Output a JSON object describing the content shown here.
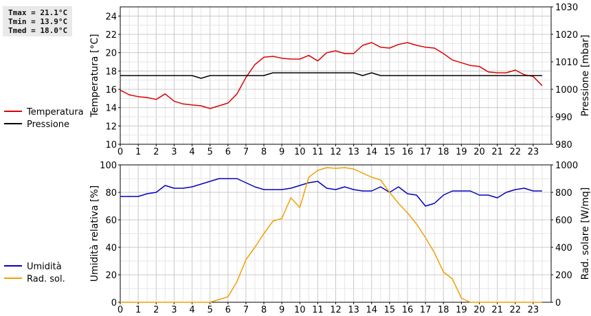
{
  "stats": {
    "tmax": "Tmax = 21.1°C",
    "tmin": "Tmin = 13.9°C",
    "tmed": "Tmed = 18.0°C"
  },
  "chart_data": [
    {
      "type": "line",
      "xlabel": "",
      "ylabel": "Temperatura [°C]",
      "y2label": "Pressione [mbar]",
      "xlim": [
        0,
        24
      ],
      "ylim": [
        10,
        25
      ],
      "y2lim": [
        980,
        1030
      ],
      "x_ticks": [
        0,
        1,
        2,
        3,
        4,
        5,
        6,
        7,
        8,
        9,
        10,
        11,
        12,
        13,
        14,
        15,
        16,
        17,
        18,
        19,
        20,
        21,
        22,
        23
      ],
      "y_ticks": [
        10,
        12,
        14,
        16,
        18,
        20,
        22,
        24
      ],
      "y2_ticks": [
        980,
        990,
        1000,
        1010,
        1020,
        1030
      ],
      "grid": true,
      "legend": "left",
      "series": [
        {
          "name": "Temperatura",
          "axis": "left",
          "color": "#dd0000",
          "x": [
            0,
            0.5,
            1,
            1.5,
            2,
            2.5,
            3,
            3.5,
            4,
            4.5,
            5,
            5.5,
            6,
            6.5,
            7,
            7.5,
            8,
            8.5,
            9,
            9.5,
            10,
            10.5,
            11,
            11.5,
            12,
            12.5,
            13,
            13.5,
            14,
            14.5,
            15,
            15.5,
            16,
            16.5,
            17,
            17.5,
            18,
            18.5,
            19,
            19.5,
            20,
            20.5,
            21,
            21.5,
            22,
            22.5,
            23,
            23.5
          ],
          "values": [
            15.9,
            15.4,
            15.2,
            15.1,
            14.9,
            15.5,
            14.7,
            14.4,
            14.3,
            14.2,
            13.9,
            14.2,
            14.5,
            15.5,
            17.3,
            18.7,
            19.5,
            19.6,
            19.4,
            19.3,
            19.3,
            19.7,
            19.1,
            20.0,
            20.2,
            19.9,
            19.9,
            20.8,
            21.1,
            20.6,
            20.5,
            20.9,
            21.1,
            20.8,
            20.6,
            20.5,
            19.9,
            19.2,
            18.9,
            18.6,
            18.5,
            17.9,
            17.8,
            17.8,
            18.1,
            17.6,
            17.4,
            16.4
          ]
        },
        {
          "name": "Pressione",
          "axis": "right",
          "color": "#000000",
          "x": [
            0,
            0.5,
            1,
            1.5,
            2,
            2.5,
            3,
            3.5,
            4,
            4.5,
            5,
            5.5,
            6,
            6.5,
            7,
            7.5,
            8,
            8.5,
            9,
            9.5,
            10,
            10.5,
            11,
            11.5,
            12,
            12.5,
            13,
            13.5,
            14,
            14.5,
            15,
            15.5,
            16,
            16.5,
            17,
            17.5,
            18,
            18.5,
            19,
            19.5,
            20,
            20.5,
            21,
            21.5,
            22,
            22.5,
            23,
            23.5
          ],
          "values": [
            1005,
            1005,
            1005,
            1005,
            1005,
            1005,
            1005,
            1005,
            1005,
            1004,
            1005,
            1005,
            1005,
            1005,
            1005,
            1005,
            1005,
            1006,
            1006,
            1006,
            1006,
            1006,
            1006,
            1006,
            1006,
            1006,
            1006,
            1005,
            1006,
            1005,
            1005,
            1005,
            1005,
            1005,
            1005,
            1005,
            1005,
            1005,
            1005,
            1005,
            1005,
            1005,
            1005,
            1005,
            1005,
            1005,
            1005,
            1005
          ]
        }
      ]
    },
    {
      "type": "line",
      "xlabel": "",
      "ylabel": "Umidità relativa [%]",
      "y2label": "Rad. solare [W/mq]",
      "xlim": [
        0,
        24
      ],
      "ylim": [
        0,
        100
      ],
      "y2lim": [
        0,
        1000
      ],
      "x_ticks": [
        0,
        1,
        2,
        3,
        4,
        5,
        6,
        7,
        8,
        9,
        10,
        11,
        12,
        13,
        14,
        15,
        16,
        17,
        18,
        19,
        20,
        21,
        22,
        23
      ],
      "y_ticks": [
        0,
        20,
        40,
        60,
        80,
        100
      ],
      "y2_ticks": [
        0,
        200,
        400,
        600,
        800,
        1000
      ],
      "grid": true,
      "legend": "left",
      "series": [
        {
          "name": "Umidità",
          "axis": "left",
          "color": "#0000bb",
          "x": [
            0,
            0.5,
            1,
            1.5,
            2,
            2.5,
            3,
            3.5,
            4,
            4.5,
            5,
            5.5,
            6,
            6.5,
            7,
            7.5,
            8,
            8.5,
            9,
            9.5,
            10,
            10.5,
            11,
            11.5,
            12,
            12.5,
            13,
            13.5,
            14,
            14.5,
            15,
            15.5,
            16,
            16.5,
            17,
            17.5,
            18,
            18.5,
            19,
            19.5,
            20,
            20.5,
            21,
            21.5,
            22,
            22.5,
            23,
            23.5
          ],
          "values": [
            77,
            77,
            77,
            79,
            80,
            85,
            83,
            83,
            84,
            86,
            88,
            90,
            90,
            90,
            87,
            84,
            82,
            82,
            82,
            83,
            85,
            87,
            88,
            83,
            82,
            84,
            82,
            81,
            81,
            84,
            80,
            84,
            79,
            78,
            70,
            72,
            78,
            81,
            81,
            81,
            78,
            78,
            76,
            80,
            82,
            83,
            81,
            81
          ]
        },
        {
          "name": "Rad. sol.",
          "axis": "right",
          "color": "#f0a000",
          "x": [
            0,
            0.5,
            1,
            1.5,
            2,
            2.5,
            3,
            3.5,
            4,
            4.5,
            5,
            5.5,
            6,
            6.5,
            7,
            7.5,
            8,
            8.5,
            9,
            9.5,
            10,
            10.5,
            11,
            11.5,
            12,
            12.5,
            13,
            13.5,
            14,
            14.5,
            15,
            15.5,
            16,
            16.5,
            17,
            17.5,
            18,
            18.5,
            19,
            19.5,
            20,
            20.5,
            21,
            21.5,
            22,
            22.5,
            23,
            23.5
          ],
          "values": [
            0,
            0,
            0,
            0,
            0,
            0,
            0,
            0,
            0,
            0,
            0,
            20,
            40,
            150,
            310,
            400,
            500,
            590,
            610,
            760,
            690,
            910,
            960,
            980,
            975,
            980,
            970,
            940,
            910,
            890,
            800,
            720,
            650,
            570,
            470,
            360,
            220,
            170,
            30,
            0,
            0,
            0,
            0,
            0,
            0,
            0,
            0,
            0
          ]
        }
      ]
    }
  ]
}
